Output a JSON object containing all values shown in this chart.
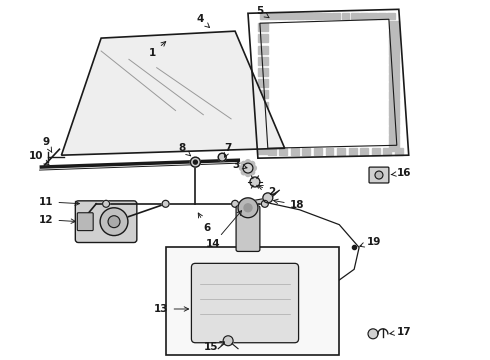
{
  "bg_color": "#ffffff",
  "line_color": "#1a1a1a",
  "fig_width": 4.9,
  "fig_height": 3.6,
  "dpi": 100,
  "glass_color": "#f0f0f0",
  "molding_hatch": "#aaaaaa",
  "component_fill": "#d8d8d8",
  "box_fill": "#f8f8f8"
}
